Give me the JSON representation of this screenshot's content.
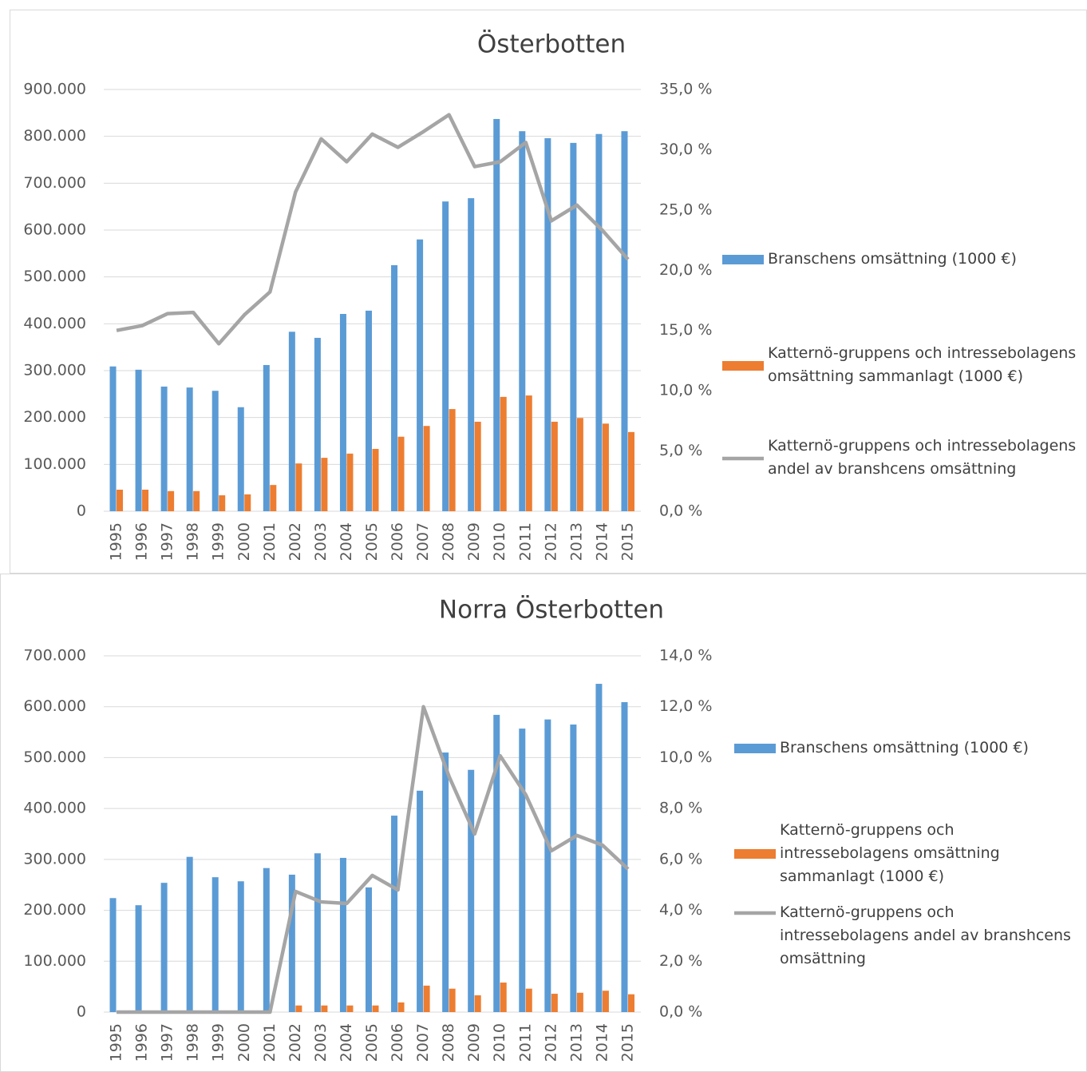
{
  "chart_data": [
    {
      "type": "bar",
      "title": "Österbotten",
      "categories": [
        "1995",
        "1996",
        "1997",
        "1998",
        "1999",
        "2000",
        "2001",
        "2002",
        "2003",
        "2004",
        "2005",
        "2006",
        "2007",
        "2008",
        "2009",
        "2010",
        "2011",
        "2012",
        "2013",
        "2014",
        "2015"
      ],
      "series": [
        {
          "name": "Branschens omsättning (1000 €)",
          "color": "#5b9bd5",
          "values": [
            309000,
            302000,
            266000,
            264000,
            257000,
            222000,
            312000,
            383000,
            370000,
            421000,
            428000,
            525000,
            580000,
            661000,
            668000,
            837000,
            811000,
            796000,
            786000,
            805000,
            811000
          ]
        },
        {
          "name": "Katternö-gruppens och intressebolagens omsättning sammanlagt (1000 €)",
          "color": "#ed7d31",
          "values": [
            46000,
            46000,
            43000,
            43000,
            34000,
            36000,
            56000,
            102000,
            114000,
            123000,
            133000,
            159000,
            182000,
            218000,
            191000,
            244000,
            247000,
            191000,
            199000,
            187000,
            169000
          ]
        },
        {
          "name": "Katternö-gruppens och intressebolagens andel av branshcens omsättning",
          "color": "#a5a5a5",
          "type": "line",
          "axis": "y2",
          "values": [
            15.0,
            15.4,
            16.4,
            16.5,
            13.9,
            16.3,
            18.2,
            26.5,
            30.9,
            29.0,
            31.3,
            30.2,
            31.5,
            32.9,
            28.6,
            29.0,
            30.6,
            24.1,
            25.4,
            23.3,
            20.9
          ]
        }
      ],
      "ylim": [
        0,
        900000
      ],
      "yticks": [
        0,
        {
          "value": 100000,
          "label": "100.000"
        },
        {
          "value": 200000,
          "label": "200.000"
        },
        {
          "value": 300000,
          "label": "300.000"
        },
        {
          "value": 400000,
          "label": "400.000"
        },
        {
          "value": 500000,
          "label": "500.000"
        },
        {
          "value": 600000,
          "label": "600.000"
        },
        {
          "value": 700000,
          "label": "700.000"
        },
        {
          "value": 800000,
          "label": "800.000"
        },
        {
          "value": 900000,
          "label": "900.000"
        }
      ],
      "y2lim": [
        0,
        35
      ],
      "y2ticks": [
        {
          "value": 0,
          "label": "0,0 %"
        },
        {
          "value": 5,
          "label": "5,0 %"
        },
        {
          "value": 10,
          "label": "10,0 %"
        },
        {
          "value": 15,
          "label": "15,0 %"
        },
        {
          "value": 20,
          "label": "20,0 %"
        },
        {
          "value": 25,
          "label": "25,0 %"
        },
        {
          "value": 30,
          "label": "30,0 %"
        },
        {
          "value": 35,
          "label": "35,0 %"
        }
      ],
      "grid": true,
      "legend": "right"
    },
    {
      "type": "bar",
      "title": "Norra Österbotten",
      "categories": [
        "1995",
        "1996",
        "1997",
        "1998",
        "1999",
        "2000",
        "2001",
        "2002",
        "2003",
        "2004",
        "2005",
        "2006",
        "2007",
        "2008",
        "2009",
        "2010",
        "2011",
        "2012",
        "2013",
        "2014",
        "2015"
      ],
      "series": [
        {
          "name": "Branschens omsättning (1000 €)",
          "color": "#5b9bd5",
          "values": [
            224000,
            210000,
            254000,
            305000,
            265000,
            257000,
            283000,
            270000,
            312000,
            303000,
            245000,
            386000,
            435000,
            510000,
            476000,
            584000,
            557000,
            575000,
            565000,
            645000,
            609000
          ]
        },
        {
          "name": "Katternö-gruppens och intressebolagens omsättning sammanlagt (1000 €)",
          "color": "#ed7d31",
          "values": [
            0,
            0,
            0,
            0,
            0,
            0,
            0,
            13000,
            13000,
            13000,
            13000,
            19000,
            52000,
            46000,
            33000,
            58000,
            46000,
            36000,
            38000,
            42000,
            35000
          ]
        },
        {
          "name": "Katternö-gruppens och intressebolagens andel av branshcens omsättning",
          "color": "#a5a5a5",
          "type": "line",
          "axis": "y2",
          "values": [
            0,
            0,
            0,
            0,
            0,
            0,
            0,
            4.74,
            4.33,
            4.27,
            5.37,
            4.8,
            12.0,
            9.26,
            7.0,
            10.07,
            8.54,
            6.34,
            6.94,
            6.56,
            5.62
          ]
        }
      ],
      "ylim": [
        0,
        700000
      ],
      "yticks": [
        0,
        {
          "value": 100000,
          "label": "100.000"
        },
        {
          "value": 200000,
          "label": "200.000"
        },
        {
          "value": 300000,
          "label": "300.000"
        },
        {
          "value": 400000,
          "label": "400.000"
        },
        {
          "value": 500000,
          "label": "500.000"
        },
        {
          "value": 600000,
          "label": "600.000"
        },
        {
          "value": 700000,
          "label": "700.000"
        }
      ],
      "y2lim": [
        0,
        14
      ],
      "y2ticks": [
        {
          "value": 0,
          "label": "0,0 %"
        },
        {
          "value": 2,
          "label": "2,0 %"
        },
        {
          "value": 4,
          "label": "4,0 %"
        },
        {
          "value": 6,
          "label": "6,0 %"
        },
        {
          "value": 8,
          "label": "8,0 %"
        },
        {
          "value": 10,
          "label": "10,0 %"
        },
        {
          "value": 12,
          "label": "12,0 %"
        },
        {
          "value": 14,
          "label": "14,0 %"
        }
      ],
      "grid": true,
      "legend": "right"
    }
  ]
}
